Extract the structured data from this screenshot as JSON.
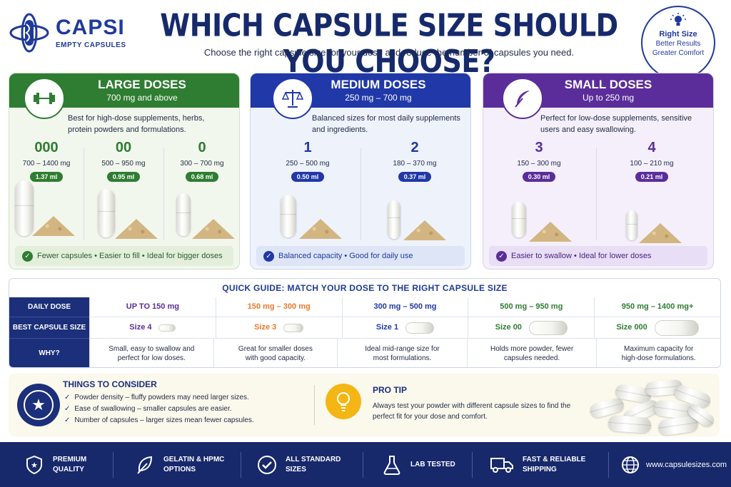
{
  "brand": {
    "name": "CAPSI",
    "tagline": "EMPTY CAPSULES"
  },
  "title": "WHICH CAPSULE SIZE SHOULD YOU CHOOSE?",
  "subtitle": "Choose the right capsule size for your dose and reduce the number of capsules you need.",
  "badge": {
    "line1": "Right Size",
    "line2": "Better Results",
    "line3": "Greater Comfort",
    "icon": "lightbulb-icon"
  },
  "colors": {
    "navy": "#1c2f7a",
    "green": "#2e7d32",
    "blue": "#2038a8",
    "purple": "#5b2d9a",
    "orange": "#e8792b",
    "gold": "#f4b615"
  },
  "cards": [
    {
      "title": "LARGE DOSES",
      "range": "700 mg and above",
      "icon": "barbell-icon",
      "desc": "Best for high-dose supplements, herbs, protein powders and formulations.",
      "sizes": [
        {
          "num": "000",
          "mg": "700 – 1400 mg",
          "ml": "1.37 ml"
        },
        {
          "num": "00",
          "mg": "500 – 950 mg",
          "ml": "0.95 ml"
        },
        {
          "num": "0",
          "mg": "300 – 700 mg",
          "ml": "0.68 ml"
        }
      ],
      "footer": "Fewer capsules • Easier to fill • Ideal for bigger doses"
    },
    {
      "title": "MEDIUM DOSES",
      "range": "250 mg – 700 mg",
      "icon": "scale-icon",
      "desc": "Balanced sizes for most daily supplements and ingredients.",
      "sizes": [
        {
          "num": "1",
          "mg": "250 – 500 mg",
          "ml": "0.50 ml"
        },
        {
          "num": "2",
          "mg": "180 – 370 mg",
          "ml": "0.37 ml"
        }
      ],
      "footer": "Balanced capacity • Good for daily use"
    },
    {
      "title": "SMALL DOSES",
      "range": "Up to 250 mg",
      "icon": "feather-icon",
      "desc": "Perfect for low-dose supplements, sensitive users and easy swallowing.",
      "sizes": [
        {
          "num": "3",
          "mg": "150 – 300 mg",
          "ml": "0.30 ml"
        },
        {
          "num": "4",
          "mg": "100 – 210 mg",
          "ml": "0.21 ml"
        }
      ],
      "footer": "Easier to swallow • Ideal for lower doses"
    }
  ],
  "guide": {
    "title": "QUICK GUIDE: MATCH YOUR DOSE TO THE RIGHT CAPSULE SIZE",
    "row_labels": [
      "DAILY DOSE",
      "BEST CAPSULE SIZE",
      "WHY?"
    ],
    "columns": [
      {
        "dose": "UP TO 150 mg",
        "size": "Size 4",
        "why": "Small, easy to swallow and perfect for low doses."
      },
      {
        "dose": "150 mg – 300 mg",
        "size": "Size 3",
        "why": "Great for smaller doses with good capacity."
      },
      {
        "dose": "300 mg – 500 mg",
        "size": "Size 1",
        "why": "Ideal mid-range size for most formulations."
      },
      {
        "dose": "500 mg – 950 mg",
        "size": "Size 00",
        "why": "Holds more powder, fewer capsules needed."
      },
      {
        "dose": "950 mg – 1400 mg+",
        "size": "Size 000",
        "why": "Maximum capacity for high-dose formulations."
      }
    ]
  },
  "consider": {
    "title": "THINGS TO CONSIDER",
    "items": [
      "Powder density – fluffy powders may need larger sizes.",
      "Ease of swallowing – smaller capsules are easier.",
      "Number of capsules – larger sizes mean fewer capsules."
    ]
  },
  "tip": {
    "title": "PRO TIP",
    "text": "Always test your powder with different capsule sizes to find the perfect fit for your dose and comfort."
  },
  "footer": {
    "items": [
      {
        "label": "PREMIUM QUALITY",
        "line1": "PREMIUM",
        "line2": "QUALITY",
        "icon": "shield-star-icon"
      },
      {
        "label": "GELATIN & HPMC OPTIONS",
        "line1": "GELATIN & HPMC",
        "line2": "OPTIONS",
        "icon": "leaf-icon"
      },
      {
        "label": "ALL STANDARD SIZES",
        "line1": "ALL STANDARD",
        "line2": "SIZES",
        "icon": "check-circle-icon"
      },
      {
        "label": "LAB TESTED",
        "line1": "LAB TESTED",
        "line2": "",
        "icon": "flask-icon"
      },
      {
        "label": "FAST & RELIABLE SHIPPING",
        "line1": "FAST & RELIABLE",
        "line2": "SHIPPING",
        "icon": "truck-icon"
      },
      {
        "label": "www.capsulesizes.com",
        "line1": "www.capsulesizes.com",
        "line2": "",
        "icon": "globe-icon"
      }
    ]
  }
}
